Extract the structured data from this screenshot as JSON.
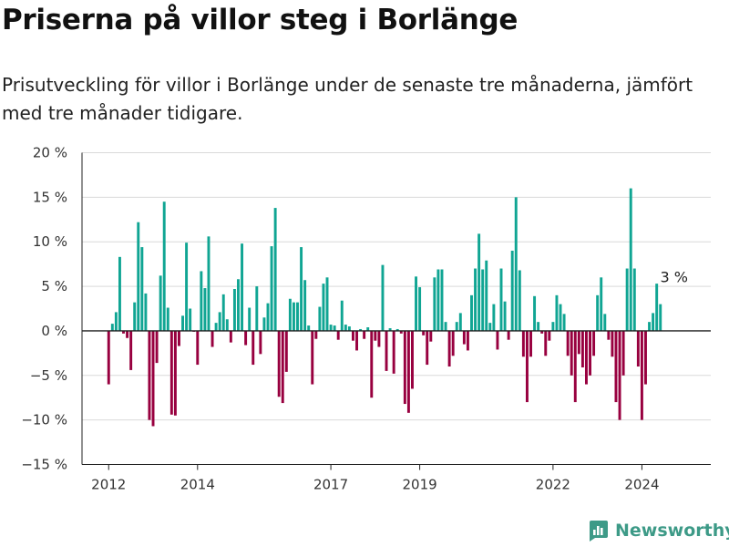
{
  "title": "Priserna på villor steg i Borlänge",
  "subtitle": "Prisutveckling för villor i Borlänge under de senaste tre månaderna, jämfört med tre månader tidigare.",
  "brand": {
    "name": "Newsworthy",
    "icon": "newsworthy-logo-icon"
  },
  "colors": {
    "positive": "#10a593",
    "negative": "#98003f",
    "grid": "#d9d9d9",
    "axis": "#222222"
  },
  "chart_data": {
    "type": "bar",
    "title": "Priserna på villor steg i Borlänge",
    "xlabel": "",
    "ylabel": "",
    "unit": "%",
    "ylim": [
      -15,
      20
    ],
    "yticks": [
      20,
      15,
      10,
      5,
      0,
      -5,
      -10,
      -15
    ],
    "ytick_labels": [
      "20 %",
      "15 %",
      "10 %",
      "5 %",
      "0 %",
      "−5 %",
      "−10 %",
      "−15 %"
    ],
    "xticks": [
      {
        "label": "2012",
        "value": 2012
      },
      {
        "label": "2014",
        "value": 2014
      },
      {
        "label": "2017",
        "value": 2017
      },
      {
        "label": "2019",
        "value": 2019
      },
      {
        "label": "2022",
        "value": 2022
      },
      {
        "label": "2024",
        "value": 2024
      }
    ],
    "xlim": [
      2011.4,
      2025.55
    ],
    "grid": true,
    "start": 2012,
    "step": 0.0833333,
    "values": [
      -6,
      0.8,
      2.1,
      8.3,
      -0.3,
      -0.8,
      -4.4,
      3.2,
      12.2,
      9.4,
      4.2,
      -10,
      -10.7,
      -3.6,
      6.2,
      14.5,
      2.6,
      -9.4,
      -9.5,
      -1.7,
      1.7,
      9.9,
      2.5,
      -0.1,
      -3.8,
      6.7,
      4.8,
      10.6,
      -1.8,
      0.9,
      2.1,
      4.1,
      1.3,
      -1.3,
      4.7,
      5.8,
      9.8,
      -1.6,
      2.6,
      -3.8,
      5,
      -2.6,
      1.5,
      3.1,
      9.5,
      13.8,
      -7.4,
      -8.1,
      -4.6,
      3.6,
      3.2,
      3.2,
      9.4,
      5.7,
      0.6,
      -6,
      -0.9,
      2.7,
      5.3,
      6,
      0.7,
      0.6,
      -1,
      3.4,
      0.7,
      0.5,
      -1.1,
      -2.2,
      0.2,
      -0.9,
      0.4,
      -7.5,
      -1.1,
      -1.8,
      7.4,
      -4.5,
      0.3,
      -4.8,
      0.2,
      -0.3,
      -8.2,
      -9.2,
      -6.5,
      6.1,
      4.9,
      -0.5,
      -3.8,
      -1.2,
      6,
      6.9,
      6.9,
      1,
      -4,
      -2.8,
      1,
      2,
      -1.5,
      -2.2,
      4,
      7,
      10.9,
      6.9,
      7.9,
      0.9,
      3,
      -2.1,
      7,
      3.3,
      -1,
      9,
      15,
      6.8,
      -2.9,
      -8,
      -2.9,
      3.9,
      1,
      -0.3,
      -2.8,
      -1.1,
      1,
      4,
      3,
      1.9,
      -2.8,
      -5,
      -8,
      -2.6,
      -4.1,
      -6,
      -5,
      -2.8,
      4,
      6,
      1.9,
      -1,
      -2.9,
      -8,
      -10,
      -5,
      7,
      16,
      7,
      -4,
      -10,
      -6,
      1,
      2,
      5.3,
      3
    ],
    "last_value_label": "3 %"
  }
}
